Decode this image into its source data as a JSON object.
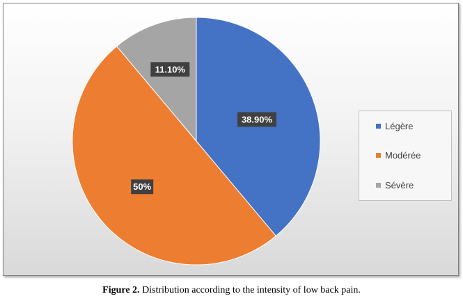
{
  "chart_data": {
    "type": "pie",
    "categories": [
      "Légère",
      "Modérée",
      "Sévère"
    ],
    "values": [
      38.9,
      50,
      11.1
    ],
    "data_labels": [
      "38.90%",
      "50%",
      "11.10%"
    ],
    "colors": [
      "#4472c4",
      "#ed7d31",
      "#a5a5a5"
    ],
    "start_angle_deg": 0,
    "direction": "clockwise",
    "legend_position": "right",
    "title": ""
  },
  "legend": {
    "items": [
      "Légère",
      "Modérée",
      "Sévère"
    ]
  },
  "caption": {
    "label": "Figure 2.",
    "text": " Distribution according to the intensity of low back pain."
  }
}
